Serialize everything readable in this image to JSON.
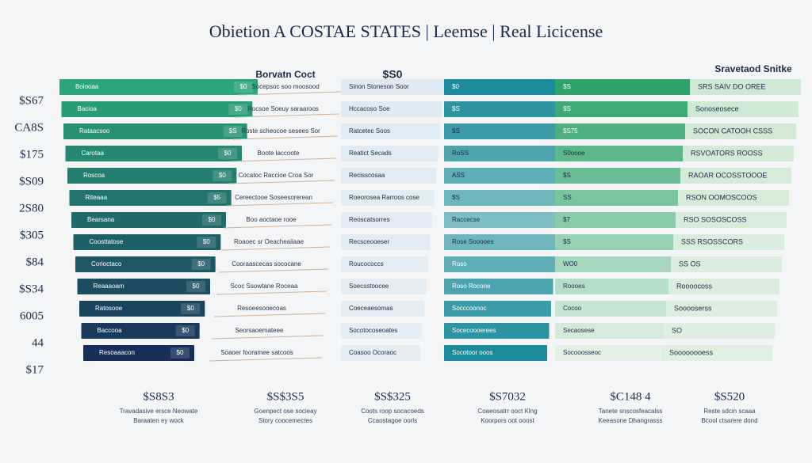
{
  "header": {
    "title": "Obietion A COSTAE STATES | Leemse | Real Licicense"
  },
  "side_labels": [
    "$S67",
    "CA8S",
    "$175",
    "$S09",
    "2S80",
    "$305",
    "$84",
    "$S34",
    "6005",
    "44",
    "$17"
  ],
  "columns": [
    {
      "rows": [
        {
          "label": "Boiooaa",
          "tag": "$0"
        },
        {
          "label": "Bacioa",
          "tag": "$0"
        },
        {
          "label": "Rataacsoo",
          "tag": "$S"
        },
        {
          "label": "Carotaa",
          "tag": "$0"
        },
        {
          "label": "Roscoa",
          "tag": "$0"
        },
        {
          "label": "Riteaaa",
          "tag": "$5"
        },
        {
          "label": "Bearsana",
          "tag": "$0"
        },
        {
          "label": "Coosttatose",
          "tag": "$0"
        },
        {
          "label": "Corioctaco",
          "tag": "$0"
        },
        {
          "label": "Reaaaoam",
          "tag": "$0"
        },
        {
          "label": "Ratosooe",
          "tag": "$0"
        },
        {
          "label": "Baccooa",
          "tag": "$0"
        },
        {
          "label": "Resoaaacon",
          "tag": "$0"
        }
      ],
      "total": "$S8S3",
      "caption": [
        "Travadasive ersce Neowate",
        "Baraaten ey wock"
      ]
    },
    {
      "heading": "Borvatn Coct",
      "rows": [
        {
          "label": "Socepsoc soo moosood"
        },
        {
          "label": "Rocsoe Soeuy saraaroos"
        },
        {
          "label": "Roste scheocoe sesees Sor"
        },
        {
          "label": "Boote laccoote"
        },
        {
          "label": "Cocatoc Raccioe Croa Sor"
        },
        {
          "label": "Cereectooe Soseesorerean"
        },
        {
          "label": "Boo aoctaoe rooe"
        },
        {
          "label": "Roaoec sr Oeacheaiiaae"
        },
        {
          "label": "Cooraascecas sococane"
        },
        {
          "label": "Scoc Ssowtane Roceaa"
        },
        {
          "label": "Resoeesooecoas"
        },
        {
          "label": "Seorsaoemateee"
        },
        {
          "label": "Soaoer fooramee satcoos"
        }
      ],
      "total": "$S$3S5",
      "caption": [
        "Goenpect ose socieay",
        "Story coocemectes"
      ]
    },
    {
      "heading": "$S0",
      "rows": [
        {
          "label": "Sinon Stoneson Soor"
        },
        {
          "label": "Hccacoso Soe"
        },
        {
          "label": "Ratcetec Soos"
        },
        {
          "label": "Reatict Secads"
        },
        {
          "label": "Recisscosaa"
        },
        {
          "label": "Roeorosea Rarroos cose"
        },
        {
          "label": "Reoscatsorres"
        },
        {
          "label": "Recsceooeser"
        },
        {
          "label": "Roucococcs"
        },
        {
          "label": "Soecsstoocee"
        },
        {
          "label": "Coeceaesomas"
        },
        {
          "label": "Socotocoseoates"
        },
        {
          "label": "Coasoo Ocoraoc"
        }
      ],
      "total": "$S$325",
      "caption": [
        "Coots roop socacoeds",
        "Ccaostagoe oorls"
      ]
    },
    {
      "rows": [
        {
          "label": "$0"
        },
        {
          "label": "$S"
        },
        {
          "label": "$S"
        },
        {
          "label": "RoSS"
        },
        {
          "label": "ASS"
        },
        {
          "label": "$S"
        },
        {
          "label": "Raccecse"
        },
        {
          "label": "Rose Sooooes"
        },
        {
          "label": "Roso"
        },
        {
          "label": "Roso Rocone"
        },
        {
          "label": "Socccoonoc"
        },
        {
          "label": "Socecoooerees"
        },
        {
          "label": "Socotoor ooos"
        }
      ],
      "total": "$S7032",
      "caption": [
        "Coaeosatrr ooct Klng",
        "Koorpors oot ooost"
      ]
    },
    {
      "rows": [
        {
          "label": "$S"
        },
        {
          "label": "$S"
        },
        {
          "label": "$S75"
        },
        {
          "label": "S0oooe"
        },
        {
          "label": "$S"
        },
        {
          "label": "SS"
        },
        {
          "label": "$7"
        },
        {
          "label": "$S"
        },
        {
          "label": "WO0"
        },
        {
          "label": "Roooes"
        },
        {
          "label": "Cocoo"
        },
        {
          "label": "Secaosese"
        },
        {
          "label": "Socooosseoc"
        }
      ],
      "total": "$C148 4",
      "caption": [
        "Tanete snscosfeacalss",
        "Keeasone Dhangrasss"
      ]
    },
    {
      "heading": "Sravetaod Snitke",
      "rows": [
        {
          "label": "SRS SAIV DO OREE"
        },
        {
          "label": "Sonoseosece"
        },
        {
          "label": "SOCON CATOOH CSSS"
        },
        {
          "label": "RSVOATORS ROOSS"
        },
        {
          "label": "RAOAR OCOSSTOOOE"
        },
        {
          "label": "RSON OOMOSCOOS"
        },
        {
          "label": "RSO SOSOSCOSS"
        },
        {
          "label": "SSS RSOSSCORS"
        },
        {
          "label": "SS OS"
        },
        {
          "label": "Roooocoss"
        },
        {
          "label": "Sooooserss"
        },
        {
          "label": "SO"
        },
        {
          "label": "Soooooooess"
        }
      ],
      "total": "$S520",
      "caption": [
        "Reste sdcin scaaa",
        "Bcool ctsarere dond"
      ]
    }
  ]
}
